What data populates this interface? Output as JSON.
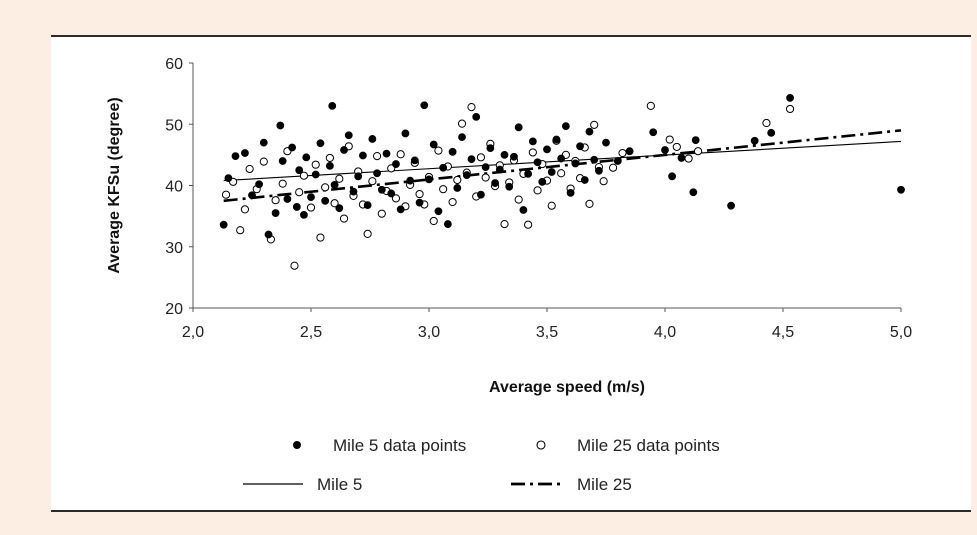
{
  "chart_data": {
    "type": "scatter",
    "title": "",
    "xlabel": "Average speed (m/s)",
    "ylabel": "Average KFSu (degree)",
    "xlim": [
      2.0,
      5.0
    ],
    "ylim": [
      20,
      60
    ],
    "x_ticks": [
      "2,0",
      "2,5",
      "3,0",
      "3,5",
      "4,0",
      "4,5",
      "5,0"
    ],
    "y_ticks": [
      "20",
      "30",
      "40",
      "50",
      "60"
    ],
    "grid": false,
    "legend_position": "bottom",
    "series": [
      {
        "name": "Mile 5 data points",
        "marker": "filled-circle",
        "color": "#000000",
        "points": [
          [
            2.13,
            33.6
          ],
          [
            2.15,
            41.2
          ],
          [
            2.18,
            44.8
          ],
          [
            2.22,
            45.3
          ],
          [
            2.25,
            38.4
          ],
          [
            2.28,
            40.2
          ],
          [
            2.3,
            47.0
          ],
          [
            2.32,
            32.0
          ],
          [
            2.35,
            35.5
          ],
          [
            2.37,
            49.8
          ],
          [
            2.38,
            44.0
          ],
          [
            2.4,
            37.8
          ],
          [
            2.42,
            46.2
          ],
          [
            2.44,
            36.5
          ],
          [
            2.45,
            42.5
          ],
          [
            2.47,
            35.2
          ],
          [
            2.48,
            44.6
          ],
          [
            2.5,
            38.1
          ],
          [
            2.52,
            41.8
          ],
          [
            2.54,
            46.9
          ],
          [
            2.56,
            37.5
          ],
          [
            2.58,
            43.2
          ],
          [
            2.59,
            53.0
          ],
          [
            2.6,
            40.1
          ],
          [
            2.62,
            36.3
          ],
          [
            2.64,
            45.8
          ],
          [
            2.66,
            48.2
          ],
          [
            2.68,
            39.0
          ],
          [
            2.7,
            41.5
          ],
          [
            2.72,
            44.9
          ],
          [
            2.74,
            36.8
          ],
          [
            2.76,
            47.6
          ],
          [
            2.78,
            42.0
          ],
          [
            2.8,
            39.3
          ],
          [
            2.82,
            45.2
          ],
          [
            2.84,
            38.7
          ],
          [
            2.86,
            43.5
          ],
          [
            2.88,
            36.1
          ],
          [
            2.9,
            48.5
          ],
          [
            2.92,
            40.8
          ],
          [
            2.94,
            44.1
          ],
          [
            2.96,
            37.2
          ],
          [
            2.98,
            53.1
          ],
          [
            3.0,
            41.0
          ],
          [
            3.02,
            46.7
          ],
          [
            3.04,
            35.8
          ],
          [
            3.06,
            42.9
          ],
          [
            3.08,
            33.7
          ],
          [
            3.1,
            45.5
          ],
          [
            3.12,
            39.6
          ],
          [
            3.14,
            47.9
          ],
          [
            3.16,
            41.7
          ],
          [
            3.18,
            44.3
          ],
          [
            3.2,
            51.2
          ],
          [
            3.22,
            38.5
          ],
          [
            3.24,
            43.0
          ],
          [
            3.26,
            46.1
          ],
          [
            3.28,
            40.4
          ],
          [
            3.3,
            42.6
          ],
          [
            3.32,
            45.0
          ],
          [
            3.34,
            39.8
          ],
          [
            3.36,
            44.7
          ],
          [
            3.38,
            49.5
          ],
          [
            3.4,
            36.0
          ],
          [
            3.42,
            41.9
          ],
          [
            3.44,
            47.2
          ],
          [
            3.46,
            43.8
          ],
          [
            3.48,
            40.6
          ],
          [
            3.5,
            45.9
          ],
          [
            3.52,
            42.2
          ],
          [
            3.54,
            47.5
          ],
          [
            3.56,
            44.4
          ],
          [
            3.58,
            49.7
          ],
          [
            3.6,
            38.8
          ],
          [
            3.62,
            43.6
          ],
          [
            3.64,
            46.4
          ],
          [
            3.66,
            40.9
          ],
          [
            3.68,
            48.8
          ],
          [
            3.7,
            44.2
          ],
          [
            3.72,
            42.4
          ],
          [
            3.75,
            47.0
          ],
          [
            3.8,
            44.0
          ],
          [
            3.85,
            45.6
          ],
          [
            3.95,
            48.7
          ],
          [
            4.0,
            45.8
          ],
          [
            4.03,
            41.5
          ],
          [
            4.07,
            44.5
          ],
          [
            4.12,
            38.9
          ],
          [
            4.13,
            47.4
          ],
          [
            4.28,
            36.7
          ],
          [
            4.38,
            47.3
          ],
          [
            4.45,
            48.6
          ],
          [
            4.53,
            54.3
          ],
          [
            5.0,
            39.3
          ]
        ]
      },
      {
        "name": "Mile 25 data points",
        "marker": "open-circle",
        "color": "#000000",
        "points": [
          [
            2.14,
            38.5
          ],
          [
            2.17,
            40.6
          ],
          [
            2.2,
            32.7
          ],
          [
            2.22,
            36.1
          ],
          [
            2.24,
            42.7
          ],
          [
            2.27,
            39.4
          ],
          [
            2.3,
            43.9
          ],
          [
            2.33,
            31.2
          ],
          [
            2.35,
            37.6
          ],
          [
            2.38,
            40.3
          ],
          [
            2.4,
            45.6
          ],
          [
            2.43,
            26.9
          ],
          [
            2.45,
            38.9
          ],
          [
            2.47,
            41.6
          ],
          [
            2.5,
            36.4
          ],
          [
            2.52,
            43.4
          ],
          [
            2.54,
            31.5
          ],
          [
            2.56,
            39.7
          ],
          [
            2.58,
            44.5
          ],
          [
            2.6,
            37.1
          ],
          [
            2.62,
            41.1
          ],
          [
            2.64,
            34.6
          ],
          [
            2.66,
            46.4
          ],
          [
            2.68,
            38.3
          ],
          [
            2.7,
            42.3
          ],
          [
            2.72,
            36.9
          ],
          [
            2.74,
            32.1
          ],
          [
            2.76,
            40.7
          ],
          [
            2.78,
            44.8
          ],
          [
            2.8,
            35.4
          ],
          [
            2.82,
            39.1
          ],
          [
            2.84,
            42.8
          ],
          [
            2.86,
            37.9
          ],
          [
            2.88,
            45.1
          ],
          [
            2.9,
            36.6
          ],
          [
            2.92,
            40.1
          ],
          [
            2.94,
            43.7
          ],
          [
            2.96,
            38.6
          ],
          [
            2.98,
            36.9
          ],
          [
            3.0,
            41.4
          ],
          [
            3.02,
            34.2
          ],
          [
            3.04,
            45.7
          ],
          [
            3.06,
            39.4
          ],
          [
            3.08,
            43.1
          ],
          [
            3.1,
            37.3
          ],
          [
            3.12,
            40.9
          ],
          [
            3.14,
            50.1
          ],
          [
            3.16,
            42.1
          ],
          [
            3.18,
            52.8
          ],
          [
            3.2,
            38.2
          ],
          [
            3.22,
            44.6
          ],
          [
            3.24,
            41.3
          ],
          [
            3.26,
            46.8
          ],
          [
            3.28,
            39.9
          ],
          [
            3.3,
            43.3
          ],
          [
            3.32,
            33.7
          ],
          [
            3.34,
            40.5
          ],
          [
            3.36,
            44.1
          ],
          [
            3.38,
            37.7
          ],
          [
            3.4,
            41.9
          ],
          [
            3.42,
            33.6
          ],
          [
            3.44,
            45.4
          ],
          [
            3.46,
            39.2
          ],
          [
            3.48,
            43.5
          ],
          [
            3.5,
            40.8
          ],
          [
            3.52,
            36.7
          ],
          [
            3.54,
            47.3
          ],
          [
            3.56,
            42.0
          ],
          [
            3.58,
            45.0
          ],
          [
            3.6,
            39.5
          ],
          [
            3.62,
            44.0
          ],
          [
            3.64,
            41.2
          ],
          [
            3.66,
            46.2
          ],
          [
            3.68,
            37.0
          ],
          [
            3.7,
            49.9
          ],
          [
            3.72,
            43.0
          ],
          [
            3.74,
            40.7
          ],
          [
            3.78,
            42.9
          ],
          [
            3.82,
            45.3
          ],
          [
            3.94,
            53.0
          ],
          [
            4.02,
            47.5
          ],
          [
            4.05,
            46.3
          ],
          [
            4.1,
            44.4
          ],
          [
            4.14,
            45.6
          ],
          [
            4.43,
            50.2
          ],
          [
            4.53,
            52.5
          ]
        ]
      }
    ],
    "trendlines": [
      {
        "name": "Mile 5",
        "style": "solid",
        "x": [
          2.13,
          5.0
        ],
        "y": [
          40.8,
          47.2
        ]
      },
      {
        "name": "Mile 25",
        "style": "dash-dot",
        "x": [
          2.13,
          5.0
        ],
        "y": [
          37.5,
          49.0
        ]
      }
    ]
  }
}
